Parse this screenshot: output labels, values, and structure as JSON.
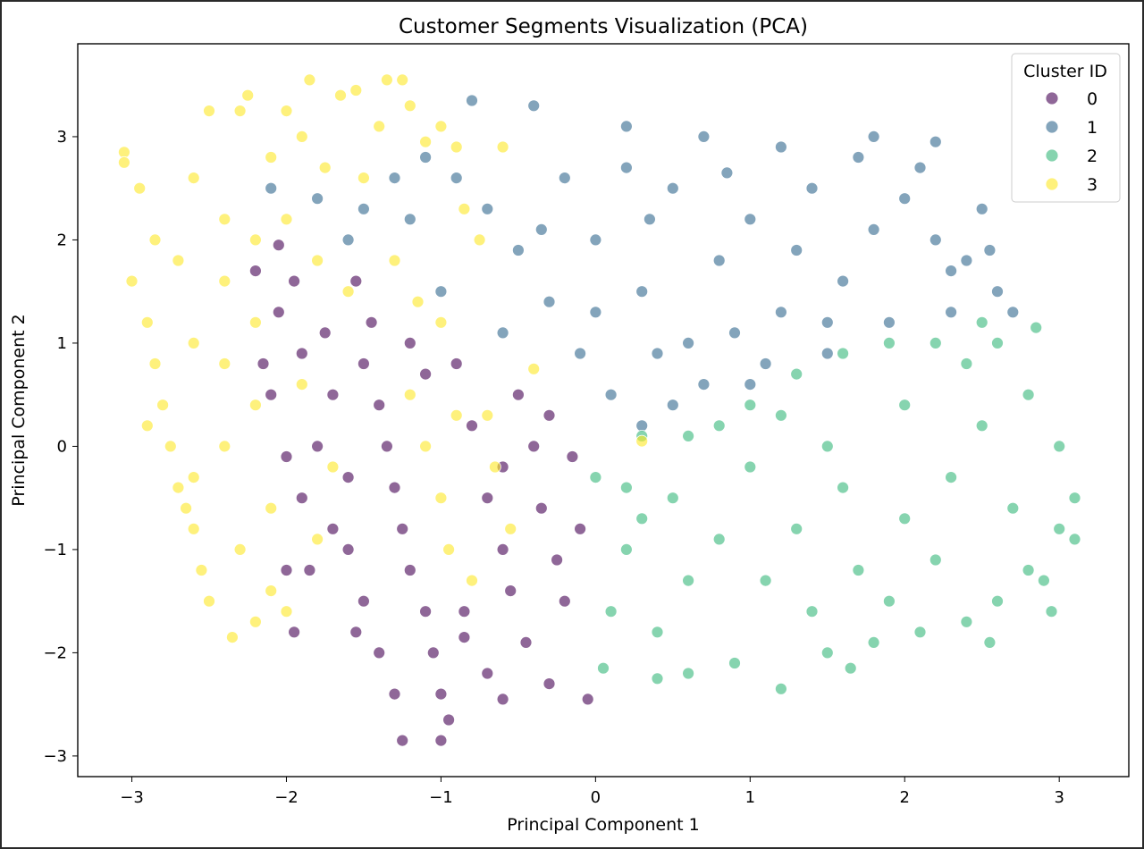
{
  "chart_data": {
    "type": "scatter",
    "title": "Customer Segments Visualization (PCA)",
    "xlabel": "Principal Component 1",
    "ylabel": "Principal Component 2",
    "xlim": [
      -3.35,
      3.45
    ],
    "ylim": [
      -3.2,
      3.9
    ],
    "xticks": [
      -3,
      -2,
      -1,
      0,
      1,
      2,
      3
    ],
    "yticks": [
      -3,
      -2,
      -1,
      0,
      1,
      2,
      3
    ],
    "grid": false,
    "legend": {
      "title": "Cluster ID",
      "placement": "top-right"
    },
    "point_alpha": 0.6,
    "point_edge_color": "#ffffff",
    "series": [
      {
        "name": "0",
        "color": "#440154",
        "points_sampled": [
          [
            -1.55,
            1.6
          ],
          [
            -1.45,
            1.2
          ],
          [
            -1.5,
            0.8
          ],
          [
            -1.4,
            0.4
          ],
          [
            -1.35,
            0.0
          ],
          [
            -1.3,
            -0.4
          ],
          [
            -1.25,
            -0.8
          ],
          [
            -1.2,
            -1.2
          ],
          [
            -1.1,
            -1.6
          ],
          [
            -1.05,
            -2.0
          ],
          [
            -1.0,
            -2.4
          ],
          [
            -0.95,
            -2.65
          ],
          [
            -1.7,
            0.5
          ],
          [
            -1.8,
            0.0
          ],
          [
            -1.9,
            -0.5
          ],
          [
            -1.6,
            -1.0
          ],
          [
            -1.5,
            -1.5
          ],
          [
            -1.4,
            -2.0
          ],
          [
            -1.3,
            -2.4
          ],
          [
            -1.6,
            -0.3
          ],
          [
            -1.7,
            -0.8
          ],
          [
            -1.55,
            -1.8
          ],
          [
            -1.95,
            1.6
          ],
          [
            -2.05,
            1.3
          ],
          [
            -2.1,
            0.5
          ],
          [
            -2.0,
            -0.1
          ],
          [
            -2.0,
            -1.2
          ],
          [
            -1.95,
            -1.8
          ],
          [
            -1.85,
            -1.2
          ],
          [
            -1.9,
            0.9
          ],
          [
            -1.75,
            1.1
          ],
          [
            -2.2,
            1.7
          ],
          [
            -2.15,
            0.8
          ],
          [
            -0.9,
            0.8
          ],
          [
            -0.8,
            0.2
          ],
          [
            -0.7,
            -0.5
          ],
          [
            -0.6,
            -1.0
          ],
          [
            -0.55,
            -1.4
          ],
          [
            -0.45,
            -1.9
          ],
          [
            -0.3,
            -2.3
          ],
          [
            -0.2,
            -1.5
          ],
          [
            -0.1,
            -0.8
          ],
          [
            -0.15,
            -0.1
          ],
          [
            -0.3,
            0.3
          ],
          [
            -0.5,
            0.5
          ],
          [
            -0.7,
            -2.2
          ],
          [
            -0.6,
            -2.45
          ],
          [
            -0.05,
            -2.45
          ],
          [
            -0.35,
            -0.6
          ],
          [
            -0.85,
            -1.6
          ],
          [
            -0.4,
            0.0
          ],
          [
            -0.25,
            -1.1
          ],
          [
            -0.6,
            -0.2
          ],
          [
            -1.25,
            -2.85
          ],
          [
            -1.0,
            -2.85
          ],
          [
            -0.85,
            -1.85
          ],
          [
            -1.1,
            0.7
          ],
          [
            -1.2,
            1.0
          ],
          [
            -2.05,
            1.95
          ]
        ]
      },
      {
        "name": "1",
        "color": "#31688e",
        "points_sampled": [
          [
            -0.8,
            3.35
          ],
          [
            -0.4,
            3.3
          ],
          [
            0.2,
            3.1
          ],
          [
            0.7,
            3.0
          ],
          [
            1.2,
            2.9
          ],
          [
            1.8,
            3.0
          ],
          [
            2.2,
            2.95
          ],
          [
            2.5,
            2.3
          ],
          [
            2.6,
            1.5
          ],
          [
            2.7,
            1.3
          ],
          [
            2.3,
            1.7
          ],
          [
            1.9,
            1.2
          ],
          [
            1.5,
            0.9
          ],
          [
            1.0,
            0.6
          ],
          [
            0.5,
            0.4
          ],
          [
            0.1,
            0.5
          ],
          [
            -0.1,
            0.9
          ],
          [
            -0.3,
            1.4
          ],
          [
            -0.5,
            1.9
          ],
          [
            -0.7,
            2.3
          ],
          [
            -0.9,
            2.6
          ],
          [
            -1.1,
            2.8
          ],
          [
            -1.3,
            2.6
          ],
          [
            -1.5,
            2.3
          ],
          [
            -1.8,
            2.4
          ],
          [
            -2.1,
            2.5
          ],
          [
            -1.6,
            2.0
          ],
          [
            -1.2,
            2.2
          ],
          [
            -1.0,
            1.5
          ],
          [
            0.0,
            2.0
          ],
          [
            0.3,
            1.5
          ],
          [
            0.5,
            2.5
          ],
          [
            0.8,
            1.8
          ],
          [
            1.0,
            2.2
          ],
          [
            1.2,
            1.3
          ],
          [
            1.4,
            2.5
          ],
          [
            1.6,
            1.6
          ],
          [
            1.8,
            2.1
          ],
          [
            2.0,
            2.4
          ],
          [
            2.2,
            2.0
          ],
          [
            2.4,
            1.8
          ],
          [
            0.6,
            1.0
          ],
          [
            0.9,
            1.1
          ],
          [
            1.1,
            0.8
          ],
          [
            0.2,
            2.7
          ],
          [
            -0.2,
            2.6
          ],
          [
            0.4,
            0.9
          ],
          [
            0.7,
            0.6
          ],
          [
            1.3,
            1.9
          ],
          [
            1.7,
            2.8
          ],
          [
            2.1,
            2.7
          ],
          [
            2.3,
            1.3
          ],
          [
            0.0,
            1.3
          ],
          [
            0.35,
            2.2
          ],
          [
            0.85,
            2.65
          ],
          [
            1.5,
            1.2
          ],
          [
            -0.6,
            1.1
          ],
          [
            -0.35,
            2.1
          ],
          [
            2.55,
            1.9
          ],
          [
            0.3,
            0.2
          ]
        ]
      },
      {
        "name": "2",
        "color": "#35b779",
        "points_sampled": [
          [
            0.0,
            -0.3
          ],
          [
            0.2,
            -1.0
          ],
          [
            0.4,
            -1.8
          ],
          [
            0.6,
            -2.2
          ],
          [
            0.9,
            -2.1
          ],
          [
            1.2,
            -2.35
          ],
          [
            1.5,
            -2.0
          ],
          [
            1.8,
            -1.9
          ],
          [
            2.1,
            -1.8
          ],
          [
            2.4,
            -1.7
          ],
          [
            2.6,
            -1.5
          ],
          [
            2.8,
            -1.2
          ],
          [
            3.0,
            -0.8
          ],
          [
            3.1,
            -0.5
          ],
          [
            3.0,
            0.0
          ],
          [
            2.8,
            0.5
          ],
          [
            2.6,
            1.0
          ],
          [
            2.5,
            1.2
          ],
          [
            2.2,
            1.0
          ],
          [
            1.9,
            1.0
          ],
          [
            1.6,
            0.9
          ],
          [
            1.3,
            0.7
          ],
          [
            1.0,
            0.4
          ],
          [
            0.6,
            0.1
          ],
          [
            0.3,
            0.1
          ],
          [
            0.5,
            -0.5
          ],
          [
            0.8,
            -0.9
          ],
          [
            1.1,
            -1.3
          ],
          [
            1.4,
            -1.6
          ],
          [
            1.7,
            -1.2
          ],
          [
            2.0,
            -0.7
          ],
          [
            2.3,
            -0.3
          ],
          [
            2.5,
            0.2
          ],
          [
            1.5,
            0.0
          ],
          [
            1.0,
            -0.2
          ],
          [
            2.0,
            0.4
          ],
          [
            1.2,
            0.3
          ],
          [
            0.8,
            0.2
          ],
          [
            0.3,
            -0.7
          ],
          [
            0.1,
            -1.6
          ],
          [
            2.7,
            -0.6
          ],
          [
            1.9,
            -1.5
          ],
          [
            1.3,
            -0.8
          ],
          [
            2.2,
            -1.1
          ],
          [
            0.6,
            -1.3
          ],
          [
            1.6,
            -0.4
          ],
          [
            2.85,
            1.15
          ],
          [
            3.1,
            -0.9
          ],
          [
            2.9,
            -1.3
          ],
          [
            0.05,
            -2.15
          ],
          [
            0.4,
            -2.25
          ],
          [
            1.65,
            -2.15
          ],
          [
            2.55,
            -1.9
          ],
          [
            2.95,
            -1.6
          ],
          [
            2.4,
            0.8
          ],
          [
            0.2,
            -0.4
          ]
        ]
      },
      {
        "name": "3",
        "color": "#fde725",
        "points_sampled": [
          [
            -3.05,
            2.85
          ],
          [
            -3.05,
            2.75
          ],
          [
            -2.95,
            2.5
          ],
          [
            -2.85,
            2.0
          ],
          [
            -3.0,
            1.6
          ],
          [
            -2.9,
            1.2
          ],
          [
            -2.85,
            0.8
          ],
          [
            -2.8,
            0.4
          ],
          [
            -2.75,
            0.0
          ],
          [
            -2.7,
            -0.4
          ],
          [
            -2.6,
            -0.8
          ],
          [
            -2.55,
            -1.2
          ],
          [
            -2.5,
            -1.5
          ],
          [
            -2.35,
            -1.85
          ],
          [
            -2.2,
            -1.7
          ],
          [
            -2.1,
            -1.4
          ],
          [
            -2.3,
            -1.0
          ],
          [
            -2.5,
            3.25
          ],
          [
            -2.3,
            3.25
          ],
          [
            -2.25,
            3.4
          ],
          [
            -2.1,
            2.8
          ],
          [
            -1.9,
            3.0
          ],
          [
            -1.75,
            2.7
          ],
          [
            -1.85,
            3.55
          ],
          [
            -1.65,
            3.4
          ],
          [
            -1.55,
            3.45
          ],
          [
            -1.4,
            3.1
          ],
          [
            -1.35,
            3.55
          ],
          [
            -1.25,
            3.55
          ],
          [
            -1.2,
            3.3
          ],
          [
            -1.1,
            2.95
          ],
          [
            -1.0,
            3.1
          ],
          [
            -0.9,
            2.9
          ],
          [
            -0.85,
            2.3
          ],
          [
            -2.6,
            2.6
          ],
          [
            -2.4,
            2.2
          ],
          [
            -2.2,
            2.0
          ],
          [
            -2.4,
            1.6
          ],
          [
            -2.2,
            1.2
          ],
          [
            -2.4,
            0.8
          ],
          [
            -2.2,
            0.4
          ],
          [
            -2.4,
            0.0
          ],
          [
            -2.1,
            -0.6
          ],
          [
            -2.6,
            1.0
          ],
          [
            -2.7,
            1.8
          ],
          [
            -2.0,
            2.2
          ],
          [
            -1.8,
            1.8
          ],
          [
            -1.6,
            1.5
          ],
          [
            -1.9,
            0.6
          ],
          [
            -1.7,
            -0.2
          ],
          [
            -1.8,
            -0.9
          ],
          [
            -1.2,
            0.5
          ],
          [
            -1.1,
            0.0
          ],
          [
            -1.0,
            -0.5
          ],
          [
            -0.95,
            -1.0
          ],
          [
            -0.8,
            -1.3
          ],
          [
            -0.7,
            0.3
          ],
          [
            -0.55,
            -0.8
          ],
          [
            -0.65,
            -0.2
          ],
          [
            -0.9,
            0.3
          ],
          [
            -1.15,
            1.4
          ],
          [
            -1.3,
            1.8
          ],
          [
            -1.5,
            2.6
          ],
          [
            -2.6,
            -0.3
          ],
          [
            -2.65,
            -0.6
          ],
          [
            -2.9,
            0.2
          ],
          [
            -2.0,
            -1.6
          ],
          [
            -1.0,
            1.2
          ],
          [
            -0.6,
            2.9
          ],
          [
            -0.75,
            2.0
          ],
          [
            0.3,
            0.05
          ],
          [
            -0.4,
            0.75
          ],
          [
            -2.0,
            3.25
          ]
        ]
      }
    ]
  }
}
